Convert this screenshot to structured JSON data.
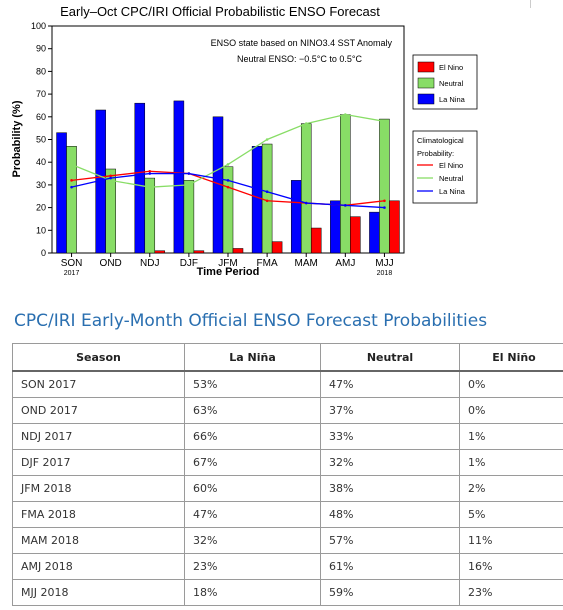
{
  "chart_data": {
    "type": "bar",
    "title": "Early–Oct CPC/IRI Official Probabilistic ENSO Forecast",
    "xlabel": "Time Period",
    "ylabel": "Probability (%)",
    "ylim": [
      0,
      100
    ],
    "yticks": [
      0,
      10,
      20,
      30,
      40,
      50,
      60,
      70,
      80,
      90,
      100
    ],
    "categories": [
      "SON",
      "OND",
      "NDJ",
      "DJF",
      "JFM",
      "FMA",
      "MAM",
      "AMJ",
      "MJJ"
    ],
    "category_sublabels": [
      "2017",
      "",
      "",
      "",
      "",
      "",
      "",
      "",
      "2018"
    ],
    "annotation_line1": "ENSO state based on NINO3.4 SST Anomaly",
    "annotation_line2": "Neutral ENSO: −0.5°C to 0.5°C",
    "series": [
      {
        "name": "El Nino",
        "color": "#ff0000",
        "values": [
          0,
          0,
          1,
          1,
          2,
          5,
          11,
          16,
          23
        ]
      },
      {
        "name": "Neutral",
        "color": "#88dd66",
        "values": [
          47,
          37,
          33,
          32,
          38,
          48,
          57,
          61,
          59
        ]
      },
      {
        "name": "La Nina",
        "color": "#0000ff",
        "values": [
          53,
          63,
          66,
          67,
          60,
          47,
          32,
          23,
          18
        ]
      }
    ],
    "climatology_title_line1": "Climatological",
    "climatology_title_line2": "Probability:",
    "climatology": [
      {
        "name": "El Nino",
        "color": "#ff0000",
        "values": [
          32,
          34,
          36,
          35,
          29,
          23,
          22,
          21,
          23
        ]
      },
      {
        "name": "Neutral",
        "color": "#88dd66",
        "values": [
          39,
          32,
          29,
          30,
          39,
          50,
          57,
          61,
          58
        ]
      },
      {
        "name": "La Nina",
        "color": "#0000ff",
        "values": [
          29,
          33,
          35,
          35,
          32,
          27,
          22,
          21,
          20
        ]
      }
    ],
    "grid": false
  },
  "section_title": "CPC/IRI Early-Month Official ENSO Forecast Probabilities",
  "table": {
    "headers": [
      "Season",
      "La Niña",
      "Neutral",
      "El Niño"
    ],
    "rows": [
      [
        "SON 2017",
        "53%",
        "47%",
        "0%"
      ],
      [
        "OND 2017",
        "63%",
        "37%",
        "0%"
      ],
      [
        "NDJ 2017",
        "66%",
        "33%",
        "1%"
      ],
      [
        "DJF 2017",
        "67%",
        "32%",
        "1%"
      ],
      [
        "JFM 2018",
        "60%",
        "38%",
        "2%"
      ],
      [
        "FMA 2018",
        "47%",
        "48%",
        "5%"
      ],
      [
        "MAM 2018",
        "32%",
        "57%",
        "11%"
      ],
      [
        "AMJ 2018",
        "23%",
        "61%",
        "16%"
      ],
      [
        "MJJ 2018",
        "18%",
        "59%",
        "23%"
      ]
    ]
  }
}
